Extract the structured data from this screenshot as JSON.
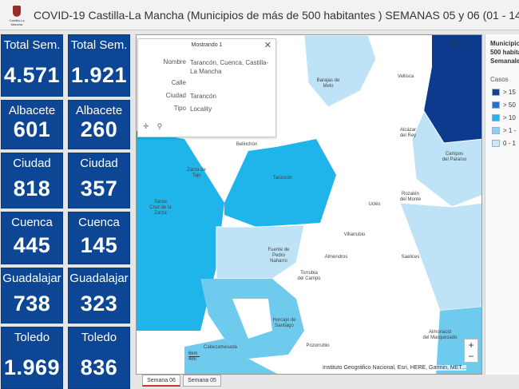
{
  "header": {
    "title": "COVID-19 Castilla-La Mancha (Municipios de más de 500 habitantes ) SEMANAS 05 y 06 (01 - 14 Feb",
    "logo_text": "Castilla-La Mancha"
  },
  "tiles": [
    {
      "label": "Total Sem.",
      "value": "4.571"
    },
    {
      "label": "Total Sem.",
      "value": "1.921"
    },
    {
      "label": "Albacete",
      "value": "601"
    },
    {
      "label": "Albacete",
      "value": "260"
    },
    {
      "label": "Ciudad",
      "value": "818"
    },
    {
      "label": "Ciudad",
      "value": "357"
    },
    {
      "label": "Cuenca",
      "value": "445"
    },
    {
      "label": "Cuenca",
      "value": "145"
    },
    {
      "label": "Guadalajar",
      "value": "738"
    },
    {
      "label": "Guadalajar",
      "value": "323"
    },
    {
      "label": "Toledo",
      "value": "1.969"
    },
    {
      "label": "Toledo",
      "value": "836"
    }
  ],
  "popup": {
    "heading": "Mostrando 1",
    "fields": [
      {
        "key": "Nombre",
        "value": "Tarancón, Cuenca, Castilla-La Mancha"
      },
      {
        "key": "Calle",
        "value": ""
      },
      {
        "key": "Ciudad",
        "value": "Tarancón"
      },
      {
        "key": "Tipo",
        "value": "Locality"
      }
    ]
  },
  "map": {
    "places": [
      "Barajas de Melo",
      "Vellisca",
      "Belinchón",
      "Alcázar del Rey",
      "Campos del Paraíso",
      "Zarza de Tajo",
      "Tarancón",
      "Santa Cruz de la Zarza",
      "Rozalén del Monte",
      "Uclés",
      "Villarrubio",
      "Fuente de Pedro Naharro",
      "Almendros",
      "Saelices",
      "Torrubia del Campo",
      "Horcajo de Santiago",
      "Pozorrubio",
      "Almonacid del Marquesado",
      "Cabezamesada"
    ],
    "attribution": "Instituto Geográfico Nacional, Esri, HERE, Garmin, MET...",
    "scale_km": "6km",
    "scale_mi": "4mi",
    "colors": {
      "water": "#1fb4ea",
      "light": "#bfe3f6",
      "medium": "#6fcbee",
      "dark": "#0d3a8c",
      "base": "#ffffff"
    }
  },
  "tabs": [
    "Semana 06",
    "Semana 05"
  ],
  "legend": {
    "title": "Municipio 500 habita Semanale",
    "casos": "Casos",
    "items": [
      {
        "label": "> 15",
        "color": "#1c3f8c"
      },
      {
        "label": "> 50",
        "color": "#2a6ccf"
      },
      {
        "label": "> 10",
        "color": "#29b1ea"
      },
      {
        "label": "> 1 -",
        "color": "#8ed0f2"
      },
      {
        "label": "0 - 1",
        "color": "#cfe8f8"
      }
    ]
  }
}
